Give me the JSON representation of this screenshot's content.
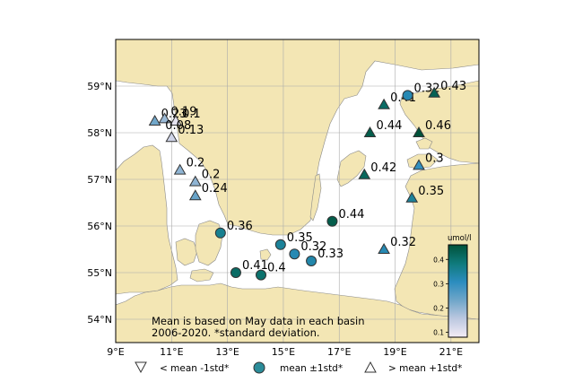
{
  "map": {
    "lon_range": [
      9,
      22
    ],
    "lat_range": [
      53.5,
      60
    ],
    "lon_ticks": [
      "9°E",
      "11°E",
      "13°E",
      "15°E",
      "17°E",
      "19°E",
      "21°E"
    ],
    "lat_ticks": [
      "54°N",
      "55°N",
      "56°N",
      "57°N",
      "58°N",
      "59°N"
    ],
    "grid": true,
    "colors": {
      "land": "#f3e6b4",
      "sea": "#ffffff",
      "grid": "#aaaaaa",
      "marker_edge": "#333333"
    }
  },
  "note": {
    "line1": "Mean is based on May data in each basin",
    "line2": "2006-2020. *standard deviation."
  },
  "colorbar": {
    "title": "umol/l",
    "ticks": [
      "0.1",
      "0.2",
      "0.3",
      "0.4"
    ],
    "range": [
      0.08,
      0.46
    ],
    "colormap": [
      "#f4ecf6",
      "#bcc8e0",
      "#6fa6c9",
      "#2b8cbe",
      "#0f7a7b",
      "#00523a"
    ]
  },
  "legend": {
    "items": [
      {
        "marker": "triangle-down",
        "label": "< mean -1std*"
      },
      {
        "marker": "circle",
        "label": "mean ±1std*"
      },
      {
        "marker": "triangle-up",
        "label": "> mean +1std*"
      }
    ]
  },
  "stations": [
    {
      "lon": 10.4,
      "lat": 58.25,
      "value": 0.23,
      "label": "0.23",
      "marker": "triangle-up"
    },
    {
      "lon": 10.75,
      "lat": 58.3,
      "value": 0.19,
      "label": "0.19",
      "marker": "triangle-up"
    },
    {
      "lon": 11.15,
      "lat": 58.25,
      "value": 0.1,
      "label": "0.1",
      "marker": "triangle-up"
    },
    {
      "lon": 11.0,
      "lat": 57.9,
      "value": 0.13,
      "label": "0.13",
      "marker": "triangle-up"
    },
    {
      "lon": 10.55,
      "lat": 58.0,
      "value": 0.08,
      "label": "0.08",
      "marker": "none"
    },
    {
      "lon": 11.3,
      "lat": 57.2,
      "value": 0.2,
      "label": "0.2",
      "marker": "triangle-up"
    },
    {
      "lon": 11.85,
      "lat": 56.95,
      "value": 0.2,
      "label": "0.2",
      "marker": "triangle-up"
    },
    {
      "lon": 11.85,
      "lat": 56.65,
      "value": 0.24,
      "label": "0.24",
      "marker": "triangle-up"
    },
    {
      "lon": 12.75,
      "lat": 55.85,
      "value": 0.36,
      "label": "0.36",
      "marker": "circle"
    },
    {
      "lon": 13.3,
      "lat": 55.0,
      "value": 0.41,
      "label": "0.41",
      "marker": "circle"
    },
    {
      "lon": 14.2,
      "lat": 54.95,
      "value": 0.4,
      "label": "0.4",
      "marker": "circle"
    },
    {
      "lon": 14.9,
      "lat": 55.6,
      "value": 0.35,
      "label": "0.35",
      "marker": "circle"
    },
    {
      "lon": 15.4,
      "lat": 55.4,
      "value": 0.32,
      "label": "0.32",
      "marker": "circle"
    },
    {
      "lon": 16.0,
      "lat": 55.25,
      "value": 0.33,
      "label": "0.33",
      "marker": "circle"
    },
    {
      "lon": 16.75,
      "lat": 56.1,
      "value": 0.44,
      "label": "0.44",
      "marker": "circle"
    },
    {
      "lon": 18.6,
      "lat": 58.6,
      "value": 0.41,
      "label": "0.41",
      "marker": "triangle-up"
    },
    {
      "lon": 19.45,
      "lat": 58.8,
      "value": 0.32,
      "label": "0.32",
      "marker": "circle"
    },
    {
      "lon": 20.4,
      "lat": 58.85,
      "value": 0.43,
      "label": "0.43",
      "marker": "triangle-up"
    },
    {
      "lon": 18.1,
      "lat": 58.0,
      "value": 0.44,
      "label": "0.44",
      "marker": "triangle-up"
    },
    {
      "lon": 19.85,
      "lat": 58.0,
      "value": 0.46,
      "label": "0.46",
      "marker": "triangle-up"
    },
    {
      "lon": 17.9,
      "lat": 57.1,
      "value": 0.42,
      "label": "0.42",
      "marker": "triangle-up"
    },
    {
      "lon": 19.85,
      "lat": 57.3,
      "value": 0.3,
      "label": "0.3",
      "marker": "triangle-up"
    },
    {
      "lon": 19.6,
      "lat": 56.6,
      "value": 0.35,
      "label": "0.35",
      "marker": "triangle-up"
    },
    {
      "lon": 18.6,
      "lat": 55.5,
      "value": 0.32,
      "label": "0.32",
      "marker": "triangle-up"
    }
  ]
}
